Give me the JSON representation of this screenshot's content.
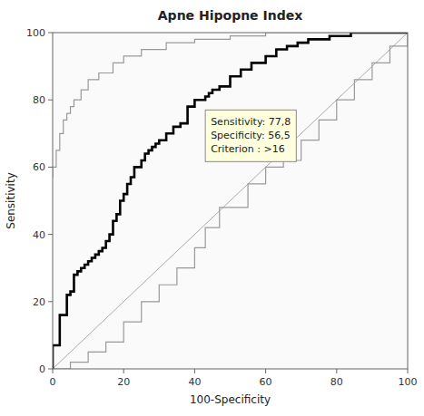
{
  "chart_data": {
    "type": "line",
    "title": "Apne Hipopne Index",
    "xlabel": "100-Specificity",
    "ylabel": "Sensitivity",
    "xlim": [
      0,
      100
    ],
    "ylim": [
      0,
      100
    ],
    "xticks": [
      0,
      20,
      40,
      60,
      80,
      100
    ],
    "yticks": [
      0,
      20,
      40,
      60,
      80,
      100
    ],
    "grid": false,
    "annotations": [
      {
        "text": "Sensitivity: 77,8\nSpecificity: 56,5\nCriterion : >16",
        "x": 43,
        "y": 77
      }
    ],
    "series": [
      {
        "color": "#aaaaaa",
        "x": [
          0,
          100
        ],
        "values": [
          0,
          100
        ]
      },
      {
        "color": "#999999",
        "x": [
          0,
          0,
          1,
          1,
          2,
          2,
          3,
          3,
          4,
          4,
          5,
          5,
          6,
          6,
          8,
          8,
          10,
          10,
          13,
          13,
          17,
          17,
          20,
          20,
          25,
          25,
          32,
          32,
          40,
          40,
          50,
          50,
          60,
          60,
          70,
          70,
          80,
          80,
          90,
          90,
          100,
          100
        ],
        "values": [
          57,
          60,
          60,
          65,
          65,
          70,
          70,
          74,
          74,
          76,
          76,
          78,
          78,
          80,
          80,
          83,
          83,
          86,
          86,
          88,
          88,
          91,
          91,
          93,
          93,
          95,
          95,
          97,
          97,
          98,
          98,
          99,
          99,
          100,
          100,
          100,
          100,
          100,
          100,
          100,
          100,
          100
        ]
      },
      {
        "color": "#999999",
        "x": [
          0,
          5,
          5,
          10,
          10,
          15,
          15,
          20,
          20,
          25,
          25,
          30,
          30,
          35,
          35,
          40,
          40,
          43,
          43,
          47,
          47,
          55,
          55,
          60,
          60,
          65,
          65,
          70,
          70,
          75,
          75,
          80,
          80,
          85,
          85,
          90,
          90,
          95,
          95,
          100,
          100
        ],
        "values": [
          0,
          0,
          2,
          2,
          5,
          5,
          8,
          8,
          14,
          14,
          20,
          20,
          25,
          25,
          30,
          30,
          36,
          36,
          42,
          42,
          48,
          48,
          55,
          55,
          60,
          60,
          62,
          62,
          68,
          68,
          74,
          74,
          80,
          80,
          86,
          86,
          91,
          91,
          96,
          96,
          100
        ]
      },
      {
        "color": "#000000",
        "x": [
          0,
          0,
          2,
          2,
          4,
          4,
          5,
          5,
          6,
          6,
          7,
          7,
          8,
          8,
          9,
          9,
          10,
          10,
          11,
          11,
          12,
          12,
          13,
          13,
          14,
          14,
          15,
          15,
          16,
          16,
          17,
          17,
          18,
          18,
          19,
          19,
          20,
          20,
          21,
          21,
          22,
          22,
          23,
          23,
          25,
          25,
          26,
          26,
          27,
          27,
          28,
          28,
          29,
          29,
          30,
          30,
          32,
          32,
          34,
          34,
          36,
          36,
          38,
          38,
          40,
          40,
          43,
          43,
          44,
          44,
          45,
          45,
          47,
          47,
          50,
          50,
          53,
          53,
          56,
          56,
          60,
          60,
          63,
          63,
          66,
          66,
          69,
          69,
          72,
          72,
          78,
          78,
          84,
          84,
          88,
          88,
          91,
          91,
          94,
          94,
          97,
          97,
          100,
          100
        ],
        "values": [
          0,
          7,
          7,
          16,
          16,
          22,
          22,
          23,
          23,
          28,
          28,
          29,
          29,
          30,
          30,
          31,
          31,
          32,
          32,
          33,
          33,
          34,
          34,
          35,
          35,
          36,
          36,
          38,
          38,
          40,
          40,
          44,
          44,
          46,
          46,
          50,
          50,
          52,
          52,
          55,
          55,
          57,
          57,
          60,
          60,
          62,
          62,
          64,
          64,
          65,
          65,
          66,
          66,
          67,
          67,
          68,
          68,
          70,
          70,
          72,
          72,
          73,
          73,
          78,
          78,
          80,
          80,
          81,
          81,
          82,
          82,
          83,
          83,
          84,
          84,
          87,
          87,
          89,
          89,
          91,
          91,
          93,
          93,
          95,
          95,
          96,
          96,
          97,
          97,
          98,
          98,
          99,
          99,
          100,
          100,
          100,
          100,
          100,
          100,
          100,
          100,
          100,
          100,
          100
        ]
      }
    ]
  }
}
